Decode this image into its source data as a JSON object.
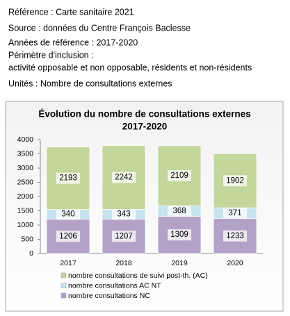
{
  "header": {
    "lines": [
      "Référence : Carte sanitaire 2021",
      "Source : données du Centre François Baclesse",
      "Années de référence : 2017-2020",
      "Périmètre d'inclusion :",
      "activité opposable et non opposable, résidents et non-résidents",
      "Unités : Nombre de consultations externes"
    ]
  },
  "chart_data": {
    "type": "stacked_bar",
    "title": "Évolution du nombre de consultations externes",
    "subtitle": "2017-2020",
    "categories": [
      "2017",
      "2018",
      "2019",
      "2020"
    ],
    "series": [
      {
        "name": "nombre consultations NC",
        "color": "#b3a2c7",
        "values": [
          1206,
          1207,
          1309,
          1233
        ]
      },
      {
        "name": "nombre consultations AC NT",
        "color": "#c6e3ef",
        "values": [
          340,
          343,
          368,
          371
        ]
      },
      {
        "name": "nombre consultations de suivi post-th. (AC)",
        "color": "#c3d69b",
        "values": [
          2193,
          2242,
          2109,
          1902
        ]
      }
    ],
    "ylim": [
      0,
      4000
    ],
    "yticks": [
      0,
      500,
      1000,
      1500,
      2000,
      2500,
      3000,
      3500,
      4000
    ],
    "grid": false
  }
}
